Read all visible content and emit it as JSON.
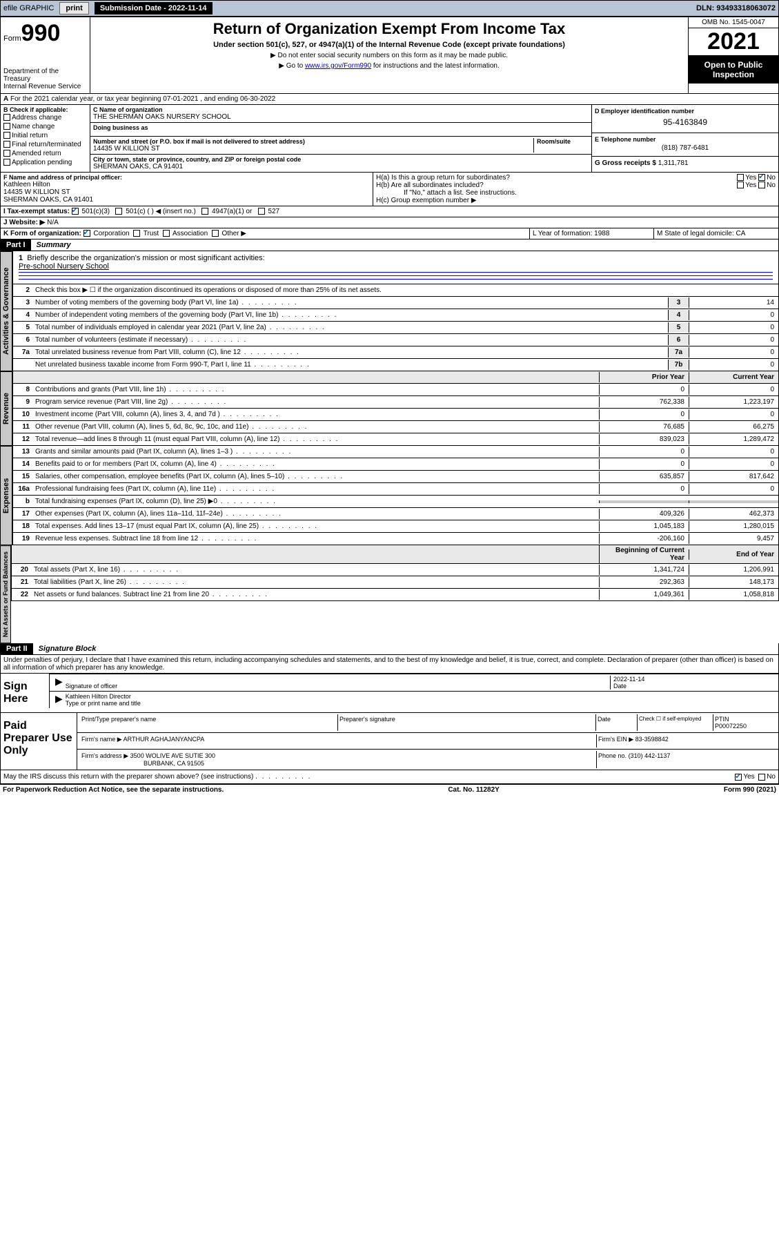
{
  "topbar": {
    "efile": "efile GRAPHIC",
    "print": "print",
    "sub_label": "Submission Date - 2022-11-14",
    "dln": "DLN: 93493318063072"
  },
  "header": {
    "form_label": "Form",
    "form_num": "990",
    "dept": "Department of the Treasury",
    "irs": "Internal Revenue Service",
    "title": "Return of Organization Exempt From Income Tax",
    "subtitle": "Under section 501(c), 527, or 4947(a)(1) of the Internal Revenue Code (except private foundations)",
    "note1": "▶ Do not enter social security numbers on this form as it may be made public.",
    "note2_pre": "▶ Go to ",
    "note2_link": "www.irs.gov/Form990",
    "note2_post": " for instructions and the latest information.",
    "omb": "OMB No. 1545-0047",
    "year": "2021",
    "open": "Open to Public Inspection"
  },
  "lineA": {
    "text": "For the 2021 calendar year, or tax year beginning 07-01-2021   , and ending 06-30-2022"
  },
  "sectionB": {
    "title": "B Check if applicable:",
    "opts": [
      "Address change",
      "Name change",
      "Initial return",
      "Final return/terminated",
      "Amended return",
      "Application pending"
    ]
  },
  "org": {
    "c_label": "C Name of organization",
    "name": "THE SHERMAN OAKS NURSERY SCHOOL",
    "dba_label": "Doing business as",
    "addr_label": "Number and street (or P.O. box if mail is not delivered to street address)",
    "room_label": "Room/suite",
    "addr": "14435 W KILLION ST",
    "city_label": "City or town, state or province, country, and ZIP or foreign postal code",
    "city": "SHERMAN OAKS, CA  91401"
  },
  "right": {
    "d_label": "D Employer identification number",
    "ein": "95-4163849",
    "e_label": "E Telephone number",
    "phone": "(818) 787-6481",
    "g_label": "G Gross receipts $",
    "gross": "1,311,781"
  },
  "f": {
    "label": "F  Name and address of principal officer:",
    "name": "Kathleen Hilton",
    "addr1": "14435 W KILLION ST",
    "addr2": "SHERMAN OAKS, CA  91401"
  },
  "h": {
    "a": "H(a)  Is this a group return for subordinates?",
    "b": "H(b)  Are all subordinates included?",
    "note": "If \"No,\" attach a list. See instructions.",
    "c": "H(c)  Group exemption number ▶"
  },
  "i": {
    "label": "I   Tax-exempt status:",
    "o1": "501(c)(3)",
    "o2": "501(c) (  ) ◀ (insert no.)",
    "o3": "4947(a)(1) or",
    "o4": "527"
  },
  "j": {
    "label": "J   Website: ▶",
    "val": "N/A"
  },
  "k": {
    "label": "K Form of organization:",
    "opts": [
      "Corporation",
      "Trust",
      "Association",
      "Other ▶"
    ]
  },
  "l": {
    "label": "L Year of formation: 1988"
  },
  "m": {
    "label": "M State of legal domicile: CA"
  },
  "part1": {
    "tag": "Part I",
    "title": "Summary"
  },
  "summary": {
    "q1": "Briefly describe the organization's mission or most significant activities:",
    "mission": "Pre-school Nursery School",
    "q2": "Check this box ▶ ☐  if the organization discontinued its operations or disposed of more than 25% of its net assets.",
    "rows_gov": [
      {
        "n": "3",
        "d": "Number of voting members of the governing body (Part VI, line 1a)",
        "b": "3",
        "v": "14"
      },
      {
        "n": "4",
        "d": "Number of independent voting members of the governing body (Part VI, line 1b)",
        "b": "4",
        "v": "0"
      },
      {
        "n": "5",
        "d": "Total number of individuals employed in calendar year 2021 (Part V, line 2a)",
        "b": "5",
        "v": "0"
      },
      {
        "n": "6",
        "d": "Total number of volunteers (estimate if necessary)",
        "b": "6",
        "v": "0"
      },
      {
        "n": "7a",
        "d": "Total unrelated business revenue from Part VIII, column (C), line 12",
        "b": "7a",
        "v": "0"
      },
      {
        "n": "",
        "d": "Net unrelated business taxable income from Form 990-T, Part I, line 11",
        "b": "7b",
        "v": "0"
      }
    ],
    "col_prior": "Prior Year",
    "col_curr": "Current Year",
    "rows_rev": [
      {
        "n": "8",
        "d": "Contributions and grants (Part VIII, line 1h)",
        "p": "0",
        "c": "0"
      },
      {
        "n": "9",
        "d": "Program service revenue (Part VIII, line 2g)",
        "p": "762,338",
        "c": "1,223,197"
      },
      {
        "n": "10",
        "d": "Investment income (Part VIII, column (A), lines 3, 4, and 7d )",
        "p": "0",
        "c": "0"
      },
      {
        "n": "11",
        "d": "Other revenue (Part VIII, column (A), lines 5, 6d, 8c, 9c, 10c, and 11e)",
        "p": "76,685",
        "c": "66,275"
      },
      {
        "n": "12",
        "d": "Total revenue—add lines 8 through 11 (must equal Part VIII, column (A), line 12)",
        "p": "839,023",
        "c": "1,289,472"
      }
    ],
    "rows_exp": [
      {
        "n": "13",
        "d": "Grants and similar amounts paid (Part IX, column (A), lines 1–3 )",
        "p": "0",
        "c": "0"
      },
      {
        "n": "14",
        "d": "Benefits paid to or for members (Part IX, column (A), line 4)",
        "p": "0",
        "c": "0"
      },
      {
        "n": "15",
        "d": "Salaries, other compensation, employee benefits (Part IX, column (A), lines 5–10)",
        "p": "635,857",
        "c": "817,642"
      },
      {
        "n": "16a",
        "d": "Professional fundraising fees (Part IX, column (A), line 11e)",
        "p": "0",
        "c": "0"
      },
      {
        "n": "b",
        "d": "Total fundraising expenses (Part IX, column (D), line 25) ▶0",
        "p": "",
        "c": "",
        "shade": true
      },
      {
        "n": "17",
        "d": "Other expenses (Part IX, column (A), lines 11a–11d, 11f–24e)",
        "p": "409,326",
        "c": "462,373"
      },
      {
        "n": "18",
        "d": "Total expenses. Add lines 13–17 (must equal Part IX, column (A), line 25)",
        "p": "1,045,183",
        "c": "1,280,015"
      },
      {
        "n": "19",
        "d": "Revenue less expenses. Subtract line 18 from line 12",
        "p": "-206,160",
        "c": "9,457"
      }
    ],
    "col_beg": "Beginning of Current Year",
    "col_end": "End of Year",
    "rows_net": [
      {
        "n": "20",
        "d": "Total assets (Part X, line 16)",
        "p": "1,341,724",
        "c": "1,206,991"
      },
      {
        "n": "21",
        "d": "Total liabilities (Part X, line 26)",
        "p": "292,363",
        "c": "148,173"
      },
      {
        "n": "22",
        "d": "Net assets or fund balances. Subtract line 21 from line 20",
        "p": "1,049,361",
        "c": "1,058,818"
      }
    ]
  },
  "part2": {
    "tag": "Part II",
    "title": "Signature Block"
  },
  "declare": "Under penalties of perjury, I declare that I have examined this return, including accompanying schedules and statements, and to the best of my knowledge and belief, it is true, correct, and complete. Declaration of preparer (other than officer) is based on all information of which preparer has any knowledge.",
  "sign": {
    "here": "Sign Here",
    "sig_label": "Signature of officer",
    "date_label": "Date",
    "date": "2022-11-14",
    "name": "Kathleen Hilton  Director",
    "name_label": "Type or print name and title"
  },
  "preparer": {
    "label": "Paid Preparer Use Only",
    "h1": "Print/Type preparer's name",
    "h2": "Preparer's signature",
    "h3": "Date",
    "h4_a": "Check ☐ if self-employed",
    "h4_b": "PTIN",
    "ptin": "P00072250",
    "firm_label": "Firm's name    ▶",
    "firm": "ARTHUR AGHAJANYANCPA",
    "ein_label": "Firm's EIN ▶",
    "ein": "83-3598842",
    "addr_label": "Firm's address ▶",
    "addr1": "3500 WOLIVE AVE SUTIE 300",
    "addr2": "BURBANK, CA  91505",
    "phone_label": "Phone no.",
    "phone": "(310) 442-1137"
  },
  "discuss": "May the IRS discuss this return with the preparer shown above? (see instructions)",
  "footer": {
    "left": "For Paperwork Reduction Act Notice, see the separate instructions.",
    "mid": "Cat. No. 11282Y",
    "right": "Form 990 (2021)"
  },
  "vert": {
    "gov": "Activities & Governance",
    "rev": "Revenue",
    "exp": "Expenses",
    "net": "Net Assets or Fund Balances"
  }
}
